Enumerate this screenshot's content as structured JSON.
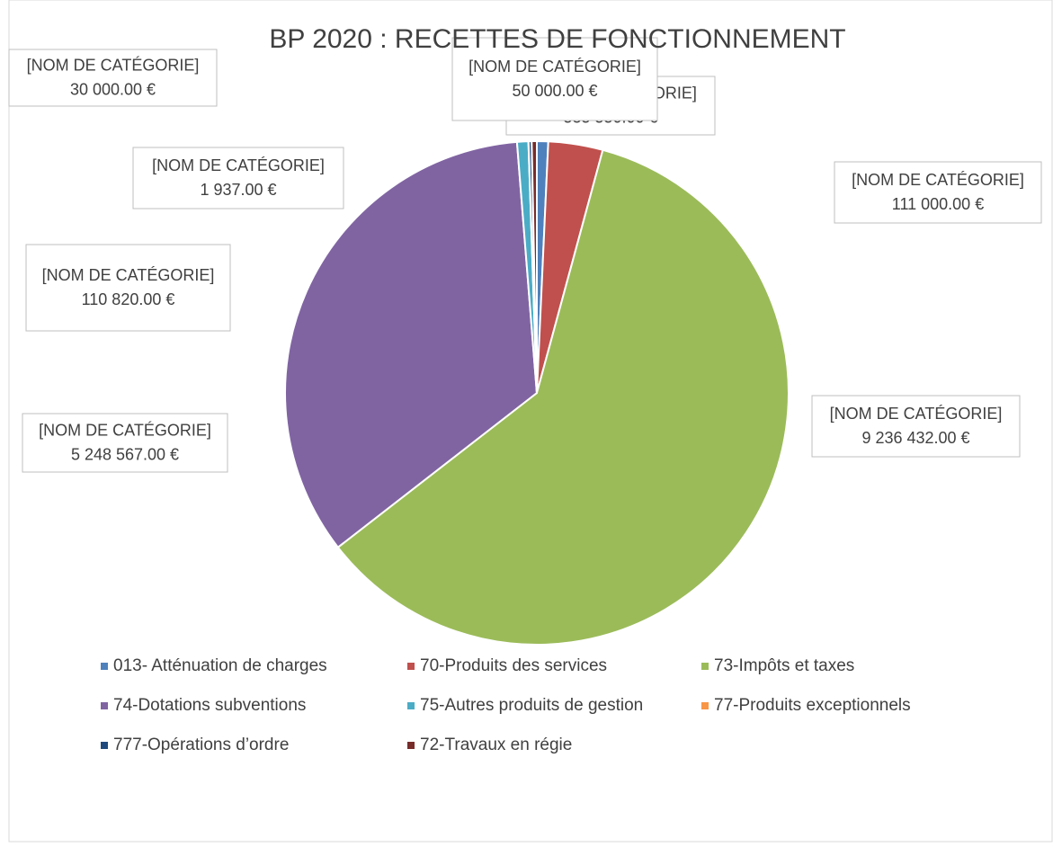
{
  "chart_data": {
    "type": "pie",
    "title": "BP 2020 : RECETTES DE FONCTIONNEMENT",
    "data_label_text": "[NOM DE CATÉGORIE]",
    "categories": [
      "013- Atténuation de charges",
      "70-Produits des services",
      "73-Impôts et taxes",
      "74-Dotations subventions",
      "75-Autres produits de gestion",
      "77-Produits exceptionnels",
      "777-Opérations d’ordre",
      "72-Travaux en régie"
    ],
    "values": [
      111000,
      535550,
      9236432,
      5248567,
      110820,
      1937,
      30000,
      50000
    ],
    "value_labels": [
      "111 000.00 €",
      "535 550.00 €",
      "9 236 432.00 €",
      "5 248 567.00 €",
      "110 820.00 €",
      "1 937.00 €",
      "30 000.00 €",
      "50 000.00 €"
    ],
    "colors": [
      "#4f81bd",
      "#c0504d",
      "#9bbb59",
      "#8064a2",
      "#4bacc6",
      "#f79646",
      "#1f497d",
      "#772c2a"
    ],
    "legend": "bottom"
  }
}
